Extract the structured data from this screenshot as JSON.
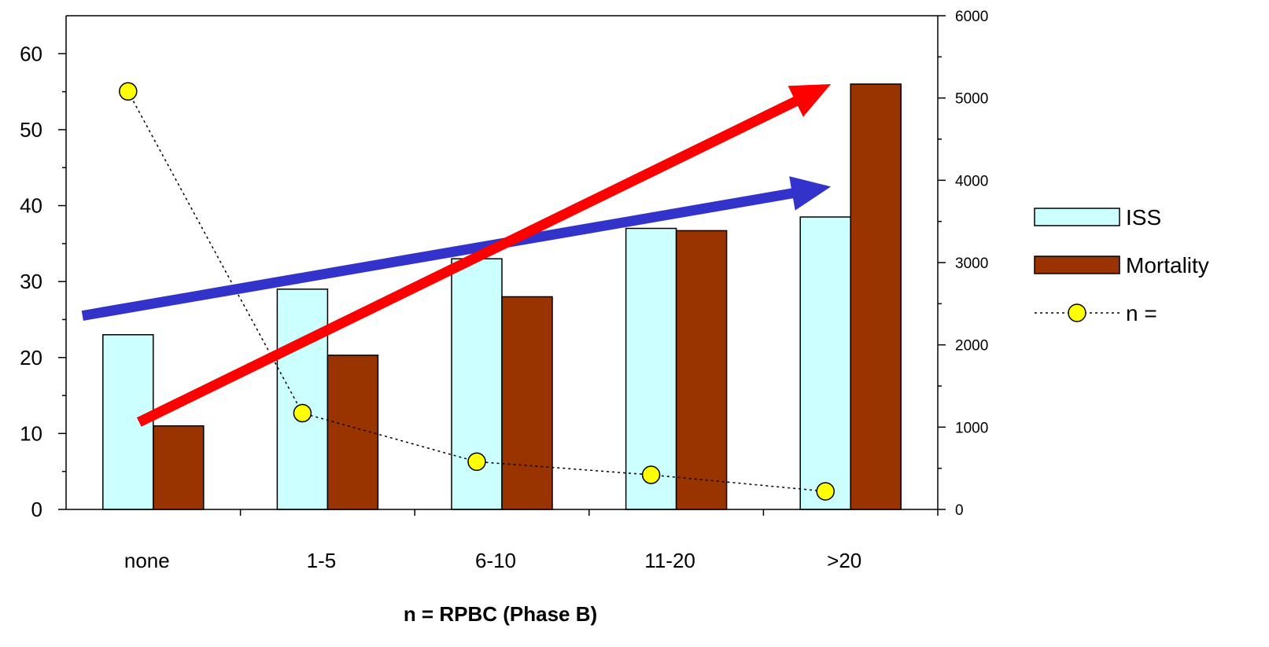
{
  "chart_data": {
    "type": "bar",
    "categories": [
      "none",
      "1-5",
      "6-10",
      "11-20",
      ">20"
    ],
    "series": [
      {
        "name": "ISS",
        "axis": "left",
        "values": [
          23,
          29,
          33,
          37,
          38.5
        ],
        "color": "#ccffff"
      },
      {
        "name": "Mortality",
        "axis": "left",
        "values": [
          11,
          20.3,
          28,
          36.7,
          56
        ],
        "color": "#993300"
      },
      {
        "name": "n =",
        "axis": "right",
        "type": "line",
        "values": [
          5080,
          1170,
          580,
          420,
          220
        ],
        "color": "#ffff00"
      }
    ],
    "left_axis": {
      "ylim": [
        0,
        65
      ],
      "ticks": [
        0,
        10,
        20,
        30,
        40,
        50,
        60
      ]
    },
    "right_axis": {
      "ylim": [
        0,
        6000
      ],
      "ticks": [
        0,
        1000,
        2000,
        3000,
        4000,
        5000,
        6000
      ]
    },
    "xlabel": "n = RPBC (Phase B)",
    "ylabel": "",
    "legend_position": "right",
    "trend_arrows": [
      {
        "name": "ISS trend",
        "color": "#3333cc",
        "from": {
          "category": "none",
          "value": 25.5
        },
        "to": {
          "category": ">20",
          "value": 42.5
        }
      },
      {
        "name": "Mortality trend",
        "color": "#ff0000",
        "from": {
          "category": "none",
          "value": 11.5
        },
        "to": {
          "category": ">20",
          "value": 56
        }
      }
    ]
  }
}
